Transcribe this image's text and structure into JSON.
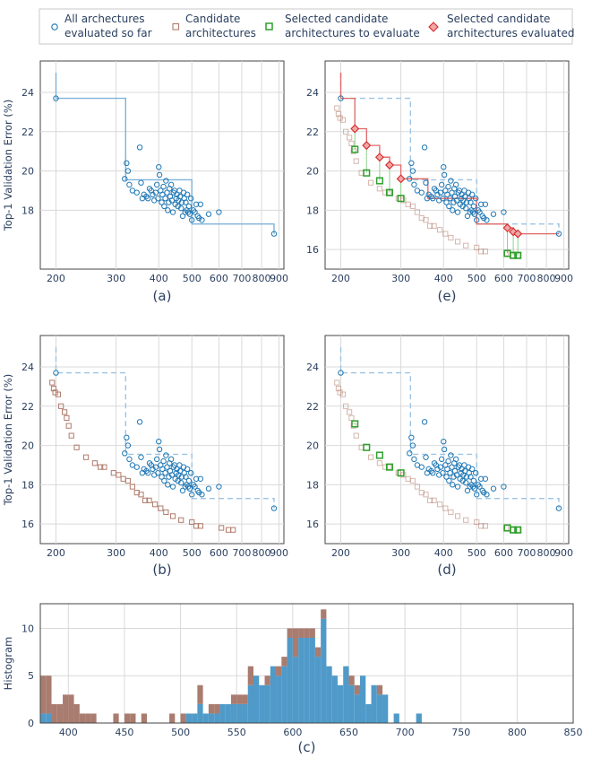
{
  "legend": {
    "items": [
      {
        "label_lines": [
          "All archectures",
          "evaluated so far"
        ],
        "marker": "circle",
        "color": "#1f77b4"
      },
      {
        "label_lines": [
          "Candidate",
          "architectures"
        ],
        "marker": "square",
        "color": "#b07b6b"
      },
      {
        "label_lines": [
          "Selected candidate",
          "architectures to evaluate"
        ],
        "marker": "square",
        "color": "#2ca02c"
      },
      {
        "label_lines": [
          "Selected candidate",
          "architectures evaluated"
        ],
        "marker": "diamond",
        "color": "#d62728"
      }
    ]
  },
  "colors": {
    "evaluated": "#1f77b4",
    "candidate": "#b07b6b",
    "selected": "#2ca02c",
    "selected_evaluated": "#d62728",
    "frontier_blue": "#7fb2d9",
    "hist_blue": "#4f9ac9",
    "hist_brown": "#a97c6f"
  },
  "chart_data": [
    {
      "id": "a",
      "type": "scatter",
      "caption": "(a)",
      "ylabel": "Top-1 Validation Error (%)",
      "xscale": "log",
      "xlim": [
        180,
        930
      ],
      "ylim": [
        15.0,
        25.6
      ],
      "xticks": [
        200,
        300,
        400,
        500,
        600,
        700,
        800,
        900
      ],
      "yticks": [
        18,
        20,
        22,
        24
      ],
      "grid": true,
      "show": {
        "evaluated": true,
        "candidates": false,
        "selected": false,
        "selected_evaluated": false
      },
      "frontier": {
        "style": "solid",
        "color": "#7fb2d9",
        "points": [
          [
            200,
            25.0
          ],
          [
            200,
            23.7
          ],
          [
            320,
            23.7
          ],
          [
            320,
            19.55
          ],
          [
            500,
            19.55
          ],
          [
            500,
            17.3
          ],
          [
            870,
            17.3
          ],
          [
            870,
            16.8
          ]
        ]
      }
    },
    {
      "id": "e",
      "type": "scatter",
      "caption": "(e)",
      "ylabel": "",
      "xscale": "log",
      "xlim": [
        180,
        930
      ],
      "ylim": [
        15.0,
        25.6
      ],
      "xticks": [
        200,
        300,
        400,
        500,
        600,
        700,
        800,
        900
      ],
      "yticks": [
        16,
        18,
        20,
        22,
        24
      ],
      "grid": true,
      "show": {
        "evaluated": true,
        "candidates": true,
        "selected": true,
        "selected_evaluated": true
      },
      "frontier": {
        "style": "dashed",
        "color": "#9cc4e4",
        "points": [
          [
            200,
            25.0
          ],
          [
            200,
            23.7
          ],
          [
            320,
            23.7
          ],
          [
            320,
            19.55
          ],
          [
            500,
            19.55
          ],
          [
            500,
            17.3
          ],
          [
            870,
            17.3
          ],
          [
            870,
            16.8
          ]
        ]
      },
      "frontier_red": {
        "style": "solid",
        "color": "#e06666",
        "points": [
          [
            200,
            25.0
          ],
          [
            200,
            23.7
          ],
          [
            220,
            23.7
          ],
          [
            220,
            22.15
          ],
          [
            238,
            22.15
          ],
          [
            238,
            21.3
          ],
          [
            260,
            21.3
          ],
          [
            260,
            20.7
          ],
          [
            278,
            20.7
          ],
          [
            278,
            20.3
          ],
          [
            300,
            20.3
          ],
          [
            300,
            19.6
          ],
          [
            360,
            19.6
          ],
          [
            360,
            18.6
          ],
          [
            500,
            18.6
          ],
          [
            500,
            17.3
          ],
          [
            615,
            17.3
          ],
          [
            615,
            17.1
          ],
          [
            640,
            17.1
          ],
          [
            640,
            16.9
          ],
          [
            660,
            16.9
          ],
          [
            660,
            16.8
          ],
          [
            870,
            16.8
          ]
        ]
      }
    },
    {
      "id": "b",
      "type": "scatter",
      "caption": "(b)",
      "ylabel": "Top-1 Validation Error (%)",
      "xscale": "log",
      "xlim": [
        180,
        930
      ],
      "ylim": [
        15.0,
        25.6
      ],
      "xticks": [
        200,
        300,
        400,
        500,
        600,
        700,
        800,
        900
      ],
      "yticks": [
        16,
        18,
        20,
        22,
        24
      ],
      "grid": true,
      "show": {
        "evaluated": true,
        "candidates": true,
        "selected": false,
        "selected_evaluated": false
      },
      "frontier": {
        "style": "dashed",
        "color": "#9cc4e4",
        "points": [
          [
            200,
            25.0
          ],
          [
            200,
            23.7
          ],
          [
            320,
            23.7
          ],
          [
            320,
            19.55
          ],
          [
            500,
            19.55
          ],
          [
            500,
            17.3
          ],
          [
            870,
            17.3
          ],
          [
            870,
            16.8
          ]
        ]
      }
    },
    {
      "id": "d",
      "type": "scatter",
      "caption": "(d)",
      "ylabel": "",
      "xscale": "log",
      "xlim": [
        180,
        930
      ],
      "ylim": [
        15.0,
        25.6
      ],
      "xticks": [
        200,
        300,
        400,
        500,
        600,
        700,
        800,
        900
      ],
      "yticks": [
        16,
        18,
        20,
        22,
        24
      ],
      "grid": true,
      "show": {
        "evaluated": true,
        "candidates": true,
        "selected": true,
        "selected_evaluated": false
      },
      "frontier": {
        "style": "dashed",
        "color": "#9cc4e4",
        "points": [
          [
            200,
            25.0
          ],
          [
            200,
            23.7
          ],
          [
            320,
            23.7
          ],
          [
            320,
            19.55
          ],
          [
            500,
            19.55
          ],
          [
            500,
            17.3
          ],
          [
            870,
            17.3
          ],
          [
            870,
            16.8
          ]
        ]
      }
    },
    {
      "id": "c",
      "type": "bar",
      "caption": "(c)",
      "ylabel": "Histogram",
      "xlim": [
        375,
        850
      ],
      "ylim": [
        0,
        12.6
      ],
      "xticks": [
        400,
        450,
        500,
        550,
        600,
        650,
        700,
        750,
        800,
        850
      ],
      "yticks": [
        0,
        5,
        10
      ],
      "bin_width": 5,
      "bin_start": 375,
      "series": [
        {
          "name": "evaluated",
          "color": "#4f9ac9",
          "values": [
            1,
            1,
            0,
            0,
            0,
            0,
            0,
            0,
            0,
            0,
            0,
            0,
            0,
            0,
            0,
            0,
            0,
            0,
            0,
            0,
            0,
            0,
            0,
            0,
            0,
            0,
            1,
            1,
            2,
            1,
            1,
            1,
            2,
            2,
            2,
            2,
            2,
            4,
            5,
            4,
            4,
            6,
            5,
            6,
            9,
            7,
            9,
            9,
            9,
            7,
            11,
            6,
            5,
            4,
            6,
            4,
            3,
            5,
            2,
            4,
            3,
            3,
            0,
            1,
            0,
            0,
            0,
            1,
            0,
            0,
            0,
            0,
            0,
            0,
            0,
            0,
            0,
            0,
            0,
            0,
            0,
            0,
            0,
            0,
            0,
            0,
            0,
            0,
            0,
            0,
            0,
            0,
            0,
            0,
            0,
            0
          ]
        },
        {
          "name": "candidates",
          "color": "#a97c6f",
          "values": [
            4,
            4,
            2,
            2,
            3,
            3,
            2,
            1,
            1,
            1,
            0,
            0,
            0,
            1,
            0,
            1,
            1,
            0,
            1,
            0,
            0,
            0,
            0,
            1,
            0,
            1,
            0,
            0,
            2,
            0,
            1,
            1,
            0,
            0,
            1,
            1,
            1,
            2,
            0,
            0,
            1,
            0,
            1,
            1,
            1,
            3,
            1,
            1,
            1,
            1,
            1,
            0,
            0,
            0,
            0,
            1,
            1,
            0,
            0,
            0,
            1,
            0,
            0,
            0,
            0,
            0,
            0,
            0,
            0,
            0,
            0,
            0,
            0,
            0,
            0,
            0,
            0,
            0,
            0,
            0,
            0,
            0,
            0,
            0,
            0,
            0,
            0,
            0,
            0,
            0,
            0,
            0,
            0,
            0,
            0,
            0
          ]
        }
      ]
    }
  ],
  "shared_points": {
    "evaluated": [
      [
        200,
        23.7
      ],
      [
        318,
        19.6
      ],
      [
        322,
        20.4
      ],
      [
        325,
        20.0
      ],
      [
        328,
        19.3
      ],
      [
        335,
        19.0
      ],
      [
        345,
        18.9
      ],
      [
        352,
        21.2
      ],
      [
        355,
        19.4
      ],
      [
        358,
        18.6
      ],
      [
        362,
        18.8
      ],
      [
        368,
        18.7
      ],
      [
        372,
        18.6
      ],
      [
        376,
        19.1
      ],
      [
        380,
        19.0
      ],
      [
        384,
        18.8
      ],
      [
        388,
        18.5
      ],
      [
        392,
        18.9
      ],
      [
        395,
        19.3
      ],
      [
        398,
        18.6
      ],
      [
        400,
        20.2
      ],
      [
        402,
        19.8
      ],
      [
        405,
        19.0
      ],
      [
        408,
        18.4
      ],
      [
        410,
        18.8
      ],
      [
        413,
        19.2
      ],
      [
        415,
        18.2
      ],
      [
        418,
        18.6
      ],
      [
        420,
        19.5
      ],
      [
        423,
        18.9
      ],
      [
        425,
        18.0
      ],
      [
        428,
        18.4
      ],
      [
        430,
        19.1
      ],
      [
        432,
        18.7
      ],
      [
        435,
        19.3
      ],
      [
        437,
        18.5
      ],
      [
        440,
        17.9
      ],
      [
        442,
        18.9
      ],
      [
        445,
        19.0
      ],
      [
        447,
        18.3
      ],
      [
        450,
        18.6
      ],
      [
        452,
        18.8
      ],
      [
        455,
        18.2
      ],
      [
        457,
        18.5
      ],
      [
        460,
        19.0
      ],
      [
        462,
        18.7
      ],
      [
        465,
        18.1
      ],
      [
        467,
        18.4
      ],
      [
        470,
        17.7
      ],
      [
        473,
        18.9
      ],
      [
        475,
        18.6
      ],
      [
        478,
        17.9
      ],
      [
        480,
        18.4
      ],
      [
        483,
        18.0
      ],
      [
        485,
        18.8
      ],
      [
        488,
        17.9
      ],
      [
        490,
        18.2
      ],
      [
        493,
        17.8
      ],
      [
        497,
        18.6
      ],
      [
        500,
        17.5
      ],
      [
        505,
        18.0
      ],
      [
        510,
        17.9
      ],
      [
        515,
        18.3
      ],
      [
        520,
        17.7
      ],
      [
        525,
        17.6
      ],
      [
        530,
        18.3
      ],
      [
        535,
        17.5
      ],
      [
        560,
        17.8
      ],
      [
        600,
        17.9
      ],
      [
        870,
        16.8
      ]
    ],
    "candidates": [
      [
        195,
        23.2
      ],
      [
        197,
        22.9
      ],
      [
        199,
        22.7
      ],
      [
        203,
        22.6
      ],
      [
        207,
        22.0
      ],
      [
        212,
        21.7
      ],
      [
        215,
        21.4
      ],
      [
        218,
        21.0
      ],
      [
        222,
        20.5
      ],
      [
        230,
        19.9
      ],
      [
        245,
        19.4
      ],
      [
        260,
        19.1
      ],
      [
        270,
        18.9
      ],
      [
        277,
        18.9
      ],
      [
        295,
        18.6
      ],
      [
        305,
        18.5
      ],
      [
        315,
        18.3
      ],
      [
        325,
        18.2
      ],
      [
        335,
        17.9
      ],
      [
        345,
        17.6
      ],
      [
        355,
        17.5
      ],
      [
        365,
        17.2
      ],
      [
        375,
        17.2
      ],
      [
        390,
        17.0
      ],
      [
        405,
        16.8
      ],
      [
        420,
        16.6
      ],
      [
        440,
        16.4
      ],
      [
        465,
        16.2
      ],
      [
        500,
        16.1
      ],
      [
        515,
        15.9
      ],
      [
        530,
        15.9
      ],
      [
        610,
        15.8
      ],
      [
        640,
        15.7
      ],
      [
        660,
        15.7
      ]
    ],
    "selected": [
      [
        220,
        21.1
      ],
      [
        238,
        19.9
      ],
      [
        260,
        19.5
      ],
      [
        278,
        18.9
      ],
      [
        300,
        18.6
      ],
      [
        615,
        15.8
      ],
      [
        640,
        15.7
      ],
      [
        660,
        15.7
      ]
    ],
    "selected_evaluated": [
      [
        220,
        22.15
      ],
      [
        238,
        21.3
      ],
      [
        260,
        20.7
      ],
      [
        278,
        20.3
      ],
      [
        300,
        19.6
      ],
      [
        615,
        17.1
      ],
      [
        640,
        16.9
      ],
      [
        660,
        16.8
      ]
    ]
  }
}
